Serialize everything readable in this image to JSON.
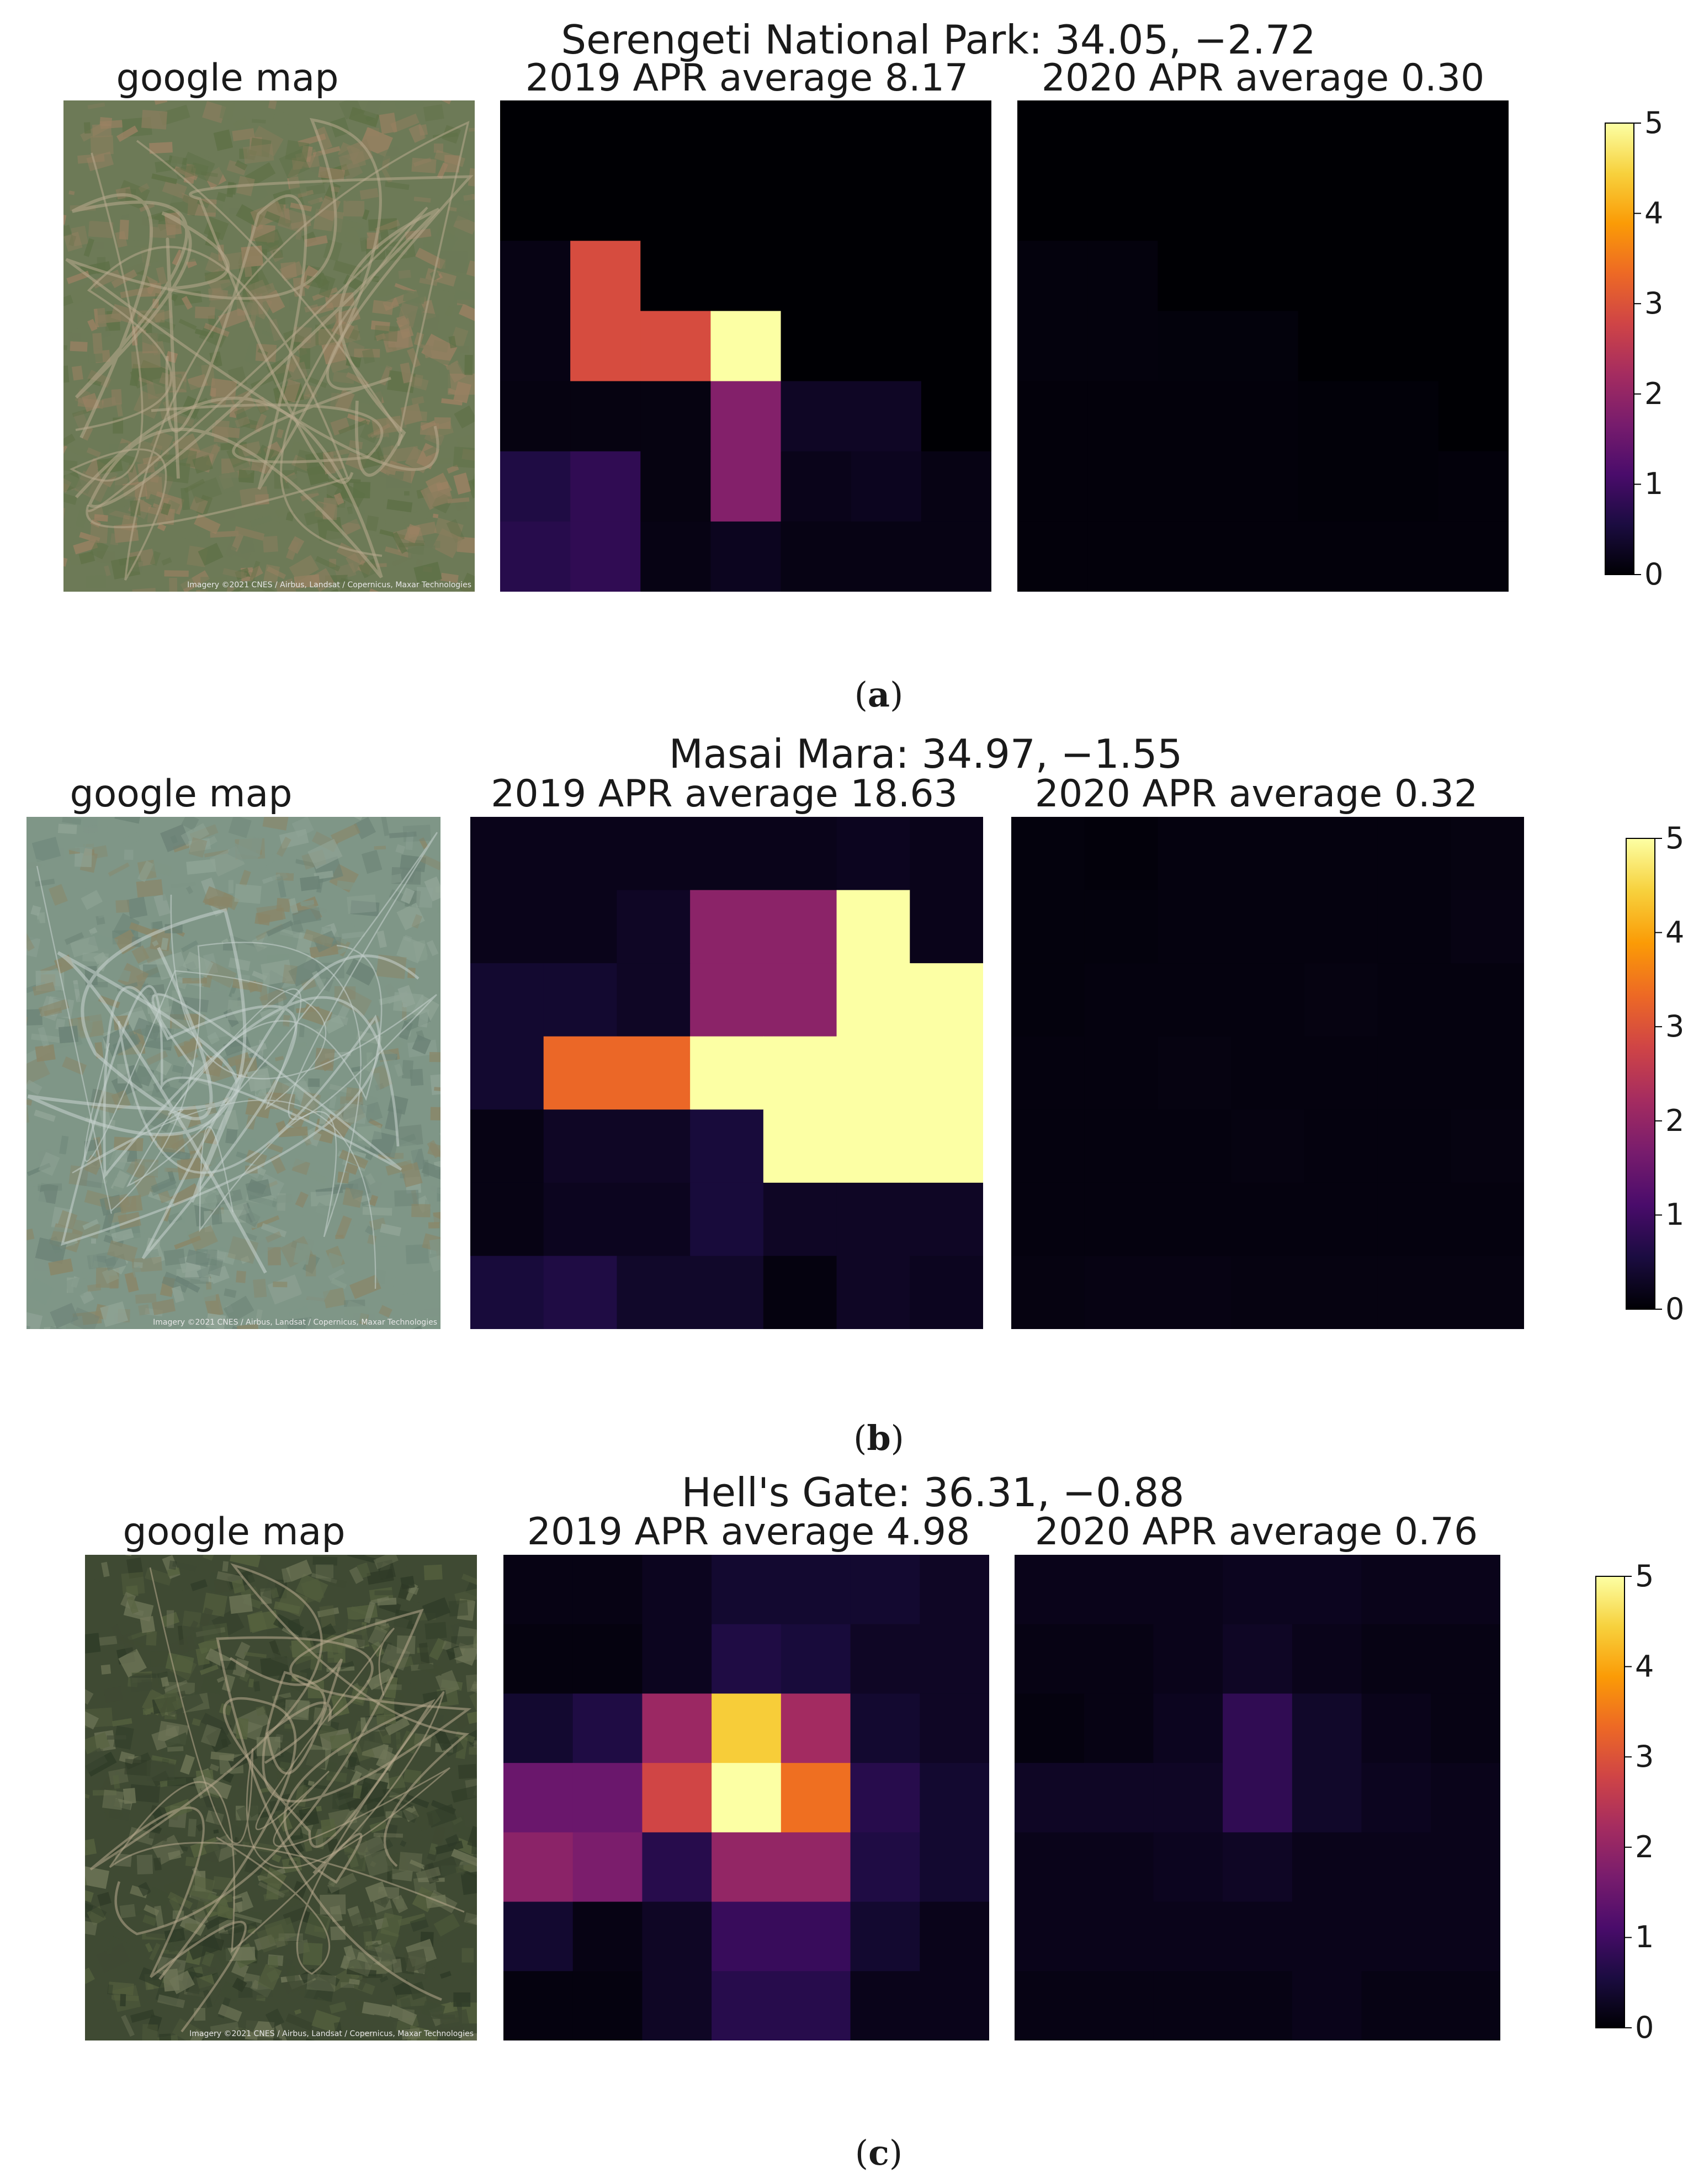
{
  "colormap": {
    "name": "inferno",
    "stops": [
      "#000004",
      "#1b0c41",
      "#4a0c6b",
      "#781c6d",
      "#a52c60",
      "#cf4446",
      "#ed6925",
      "#fb9b06",
      "#f7d13d",
      "#fcffa4"
    ]
  },
  "satellite_colors": {
    "a": [
      "#6d7a57",
      "#8a7e5e",
      "#5e7046",
      "#9b8163"
    ],
    "b": [
      "#7f9687",
      "#6b8276",
      "#91a597",
      "#8a8668"
    ],
    "c": [
      "#3f4a33",
      "#56623f",
      "#6f7658",
      "#2e3a27"
    ]
  },
  "chart_data": [
    {
      "type": "heatmap",
      "panel_label": "a",
      "title": "Serengeti National Park: 34.05, −2.72",
      "map_label": "google map",
      "imagery_credit": "Imagery ©2021 CNES / Airbus, Landsat / Copernicus, Maxar Technologies",
      "colorbar": {
        "min": 0,
        "max": 5,
        "ticks": [
          "0",
          "1",
          "2",
          "3",
          "4",
          "5"
        ]
      },
      "heatmaps": [
        {
          "label": "2019 APR average 8.17",
          "values": [
            [
              0.0,
              0.0,
              0.0,
              0.0,
              0.0,
              0.0,
              0.0
            ],
            [
              0.0,
              0.0,
              0.0,
              0.0,
              0.0,
              0.0,
              0.0
            ],
            [
              0.15,
              2.9,
              0.0,
              0.0,
              0.0,
              0.0,
              0.0
            ],
            [
              0.15,
              2.9,
              2.9,
              5.0,
              0.0,
              0.0,
              0.0
            ],
            [
              0.12,
              0.12,
              0.12,
              1.8,
              0.3,
              0.3,
              0.0
            ],
            [
              0.6,
              0.8,
              0.12,
              1.8,
              0.2,
              0.25,
              0.15
            ],
            [
              0.7,
              0.8,
              0.15,
              0.25,
              0.15,
              0.15,
              0.15
            ]
          ]
        },
        {
          "label": "2020 APR average 0.30",
          "values": [
            [
              0.0,
              0.0,
              0.0,
              0.0,
              0.0,
              0.0,
              0.0
            ],
            [
              0.0,
              0.0,
              0.0,
              0.0,
              0.0,
              0.0,
              0.0
            ],
            [
              0.08,
              0.08,
              0.0,
              0.0,
              0.0,
              0.0,
              0.0
            ],
            [
              0.08,
              0.08,
              0.07,
              0.07,
              0.0,
              0.0,
              0.0
            ],
            [
              0.06,
              0.06,
              0.06,
              0.06,
              0.05,
              0.05,
              0.0
            ],
            [
              0.06,
              0.06,
              0.06,
              0.06,
              0.05,
              0.05,
              0.06
            ],
            [
              0.06,
              0.06,
              0.06,
              0.06,
              0.06,
              0.06,
              0.06
            ]
          ]
        }
      ]
    },
    {
      "type": "heatmap",
      "panel_label": "b",
      "title": "Masai Mara: 34.97, −1.55",
      "map_label": "google map",
      "imagery_credit": "Imagery ©2021 CNES / Airbus, Landsat / Copernicus, Maxar Technologies",
      "colorbar": {
        "min": 0,
        "max": 5,
        "ticks": [
          "0",
          "1",
          "2",
          "3",
          "4",
          "5"
        ]
      },
      "heatmaps": [
        {
          "label": "2019 APR average 18.63",
          "values": [
            [
              0.2,
              0.2,
              0.2,
              0.2,
              0.2,
              0.25,
              0.2
            ],
            [
              0.2,
              0.2,
              0.3,
              1.9,
              1.9,
              5.0,
              0.2
            ],
            [
              0.4,
              0.4,
              0.3,
              1.9,
              1.9,
              5.0,
              5.0
            ],
            [
              0.4,
              3.3,
              3.3,
              5.0,
              5.0,
              5.0,
              5.0
            ],
            [
              0.15,
              0.3,
              0.3,
              0.5,
              5.0,
              5.0,
              5.0
            ],
            [
              0.15,
              0.25,
              0.25,
              0.5,
              0.3,
              0.3,
              0.3
            ],
            [
              0.5,
              0.6,
              0.35,
              0.35,
              0.1,
              0.3,
              0.25
            ]
          ]
        },
        {
          "label": "2020 APR average 0.32",
          "values": [
            [
              0.08,
              0.06,
              0.1,
              0.1,
              0.1,
              0.1,
              0.12
            ],
            [
              0.08,
              0.08,
              0.1,
              0.1,
              0.1,
              0.1,
              0.14
            ],
            [
              0.08,
              0.1,
              0.1,
              0.1,
              0.12,
              0.1,
              0.1
            ],
            [
              0.1,
              0.1,
              0.12,
              0.1,
              0.1,
              0.1,
              0.1
            ],
            [
              0.1,
              0.1,
              0.1,
              0.12,
              0.1,
              0.1,
              0.12
            ],
            [
              0.1,
              0.1,
              0.1,
              0.1,
              0.1,
              0.1,
              0.1
            ],
            [
              0.12,
              0.14,
              0.14,
              0.12,
              0.12,
              0.12,
              0.12
            ]
          ]
        }
      ]
    },
    {
      "type": "heatmap",
      "panel_label": "c",
      "title": "Hell's Gate: 36.31, −0.88",
      "map_label": "google map",
      "imagery_credit": "Imagery ©2021 CNES / Airbus, Landsat / Copernicus, Maxar Technologies",
      "colorbar": {
        "min": 0,
        "max": 5,
        "ticks": [
          "0",
          "1",
          "2",
          "3",
          "4",
          "5"
        ]
      },
      "heatmaps": [
        {
          "label": "2019 APR average 4.98",
          "values": [
            [
              0.15,
              0.15,
              0.25,
              0.4,
              0.4,
              0.4,
              0.3
            ],
            [
              0.1,
              0.1,
              0.25,
              0.6,
              0.5,
              0.3,
              0.3
            ],
            [
              0.4,
              0.6,
              2.1,
              4.4,
              2.2,
              0.4,
              0.3
            ],
            [
              1.5,
              1.5,
              2.8,
              5.0,
              3.4,
              0.7,
              0.4
            ],
            [
              1.9,
              1.7,
              0.7,
              2.0,
              2.0,
              0.6,
              0.4
            ],
            [
              0.4,
              0.15,
              0.3,
              0.9,
              0.9,
              0.4,
              0.2
            ],
            [
              0.1,
              0.1,
              0.3,
              0.7,
              0.7,
              0.2,
              0.2
            ]
          ]
        },
        {
          "label": "2020 APR average 0.76",
          "values": [
            [
              0.2,
              0.2,
              0.2,
              0.25,
              0.25,
              0.2,
              0.2
            ],
            [
              0.15,
              0.15,
              0.2,
              0.3,
              0.2,
              0.15,
              0.15
            ],
            [
              0.1,
              0.15,
              0.25,
              0.8,
              0.35,
              0.2,
              0.15
            ],
            [
              0.3,
              0.3,
              0.3,
              0.8,
              0.35,
              0.25,
              0.2
            ],
            [
              0.2,
              0.2,
              0.25,
              0.3,
              0.2,
              0.2,
              0.2
            ],
            [
              0.2,
              0.2,
              0.2,
              0.2,
              0.2,
              0.2,
              0.2
            ],
            [
              0.15,
              0.15,
              0.15,
              0.15,
              0.2,
              0.15,
              0.15
            ]
          ]
        }
      ]
    }
  ]
}
